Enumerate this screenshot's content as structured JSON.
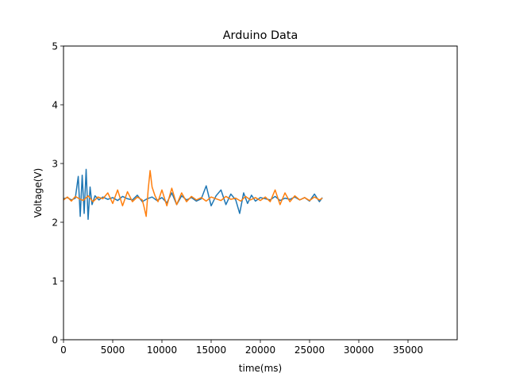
{
  "chart_data": {
    "type": "line",
    "title": "Arduino Data",
    "xlabel": "time(ms)",
    "ylabel": "Voltage(V)",
    "xlim": [
      0,
      40000
    ],
    "ylim": [
      0,
      5
    ],
    "xticks": [
      0,
      5000,
      10000,
      15000,
      20000,
      25000,
      30000,
      35000
    ],
    "xtick_labels": [
      "0",
      "5000",
      "10000",
      "15000",
      "20000",
      "25000",
      "30000",
      "35000"
    ],
    "yticks": [
      0,
      1,
      2,
      3,
      4,
      5
    ],
    "ytick_labels": [
      "0",
      "1",
      "2",
      "3",
      "4",
      "5"
    ],
    "grid": false,
    "legend": "none",
    "series": [
      {
        "color": "#1f77b4",
        "x": [
          0,
          400,
          800,
          1200,
          1500,
          1700,
          1900,
          2100,
          2300,
          2500,
          2700,
          2900,
          3200,
          3600,
          4000,
          4500,
          5000,
          5500,
          6000,
          6500,
          7000,
          7500,
          8000,
          8500,
          9000,
          9500,
          10000,
          10500,
          11000,
          11500,
          12000,
          12500,
          13000,
          13500,
          14000,
          14500,
          15000,
          15500,
          16000,
          16500,
          17000,
          17500,
          17900,
          18300,
          18700,
          19100,
          19500,
          20000,
          20500,
          21000,
          21500,
          22000,
          22500,
          23000,
          23500,
          24000,
          24500,
          25000,
          25500,
          26000,
          26300
        ],
        "y": [
          2.4,
          2.42,
          2.38,
          2.41,
          2.78,
          2.1,
          2.8,
          2.15,
          2.9,
          2.05,
          2.6,
          2.3,
          2.45,
          2.38,
          2.43,
          2.39,
          2.42,
          2.37,
          2.44,
          2.4,
          2.38,
          2.46,
          2.35,
          2.4,
          2.43,
          2.37,
          2.42,
          2.33,
          2.5,
          2.3,
          2.45,
          2.38,
          2.42,
          2.36,
          2.4,
          2.62,
          2.28,
          2.45,
          2.55,
          2.3,
          2.48,
          2.38,
          2.15,
          2.5,
          2.32,
          2.46,
          2.36,
          2.42,
          2.4,
          2.38,
          2.44,
          2.37,
          2.41,
          2.39,
          2.43,
          2.38,
          2.42,
          2.36,
          2.48,
          2.35,
          2.42
        ]
      },
      {
        "color": "#ff7f0e",
        "x": [
          0,
          400,
          800,
          1200,
          1600,
          2000,
          2500,
          3000,
          3500,
          4000,
          4500,
          5000,
          5500,
          6000,
          6500,
          7000,
          7500,
          8000,
          8200,
          8400,
          8600,
          8800,
          9000,
          9300,
          9600,
          10000,
          10500,
          11000,
          11500,
          12000,
          12500,
          13000,
          13500,
          14000,
          14500,
          15000,
          15500,
          16000,
          16500,
          17000,
          17500,
          18000,
          18500,
          19000,
          19500,
          20000,
          20500,
          21000,
          21500,
          22000,
          22500,
          23000,
          23500,
          24000,
          24500,
          25000,
          25500,
          26000,
          26300
        ],
        "y": [
          2.38,
          2.43,
          2.36,
          2.44,
          2.4,
          2.37,
          2.45,
          2.35,
          2.43,
          2.4,
          2.5,
          2.32,
          2.55,
          2.28,
          2.52,
          2.35,
          2.43,
          2.38,
          2.25,
          2.1,
          2.55,
          2.88,
          2.6,
          2.45,
          2.35,
          2.55,
          2.28,
          2.58,
          2.3,
          2.5,
          2.35,
          2.44,
          2.38,
          2.42,
          2.36,
          2.43,
          2.4,
          2.37,
          2.44,
          2.39,
          2.41,
          2.36,
          2.44,
          2.38,
          2.42,
          2.37,
          2.43,
          2.35,
          2.55,
          2.3,
          2.5,
          2.35,
          2.45,
          2.38,
          2.42,
          2.37,
          2.43,
          2.38,
          2.41
        ]
      }
    ]
  }
}
